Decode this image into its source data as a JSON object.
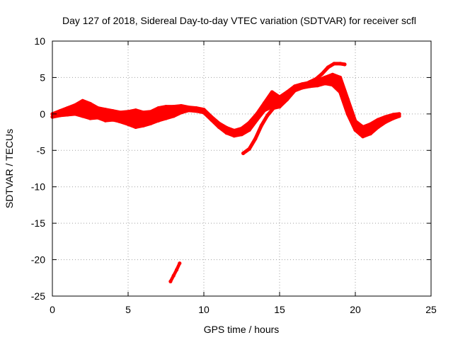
{
  "chart_data": {
    "type": "line",
    "title": "Day 127 of 2018, Sidereal Day-to-day VTEC variation (SDTVAR) for receiver scfl",
    "xlabel": "GPS time / hours",
    "ylabel": "SDTVAR / TECUs",
    "xlim": [
      0,
      25
    ],
    "ylim": [
      -25,
      10
    ],
    "xticks": [
      0,
      5,
      10,
      15,
      20,
      25
    ],
    "yticks": [
      10,
      5,
      0,
      -5,
      -10,
      -15,
      -20,
      -25
    ],
    "xtick_labels": [
      "0",
      "5",
      "10",
      "15",
      "20",
      "25"
    ],
    "ytick_labels": [
      "10",
      "5",
      "0",
      "-5",
      "-10",
      "-15",
      "-20",
      "-25"
    ],
    "grid": true,
    "color": "#ff0000",
    "series": [
      {
        "name": "band-upper",
        "x": [
          0.0,
          0.5,
          1.0,
          1.5,
          2.0,
          2.5,
          3.0,
          3.5,
          4.0,
          4.5,
          5.0,
          5.5,
          6.0,
          6.5,
          7.0,
          7.5,
          8.0,
          8.5,
          9.0,
          9.5,
          10.0,
          10.5,
          11.0,
          11.5,
          12.0,
          12.5,
          13.0,
          13.5,
          14.0,
          14.5,
          15.0,
          15.5,
          16.0,
          16.5,
          17.0,
          17.5,
          18.0,
          18.5,
          19.0,
          19.5,
          20.0,
          20.5,
          21.0,
          21.5,
          22.0,
          22.5,
          22.9
        ],
        "values": [
          0.0,
          0.4,
          0.8,
          1.2,
          1.8,
          1.4,
          0.8,
          0.6,
          0.4,
          0.2,
          0.3,
          0.5,
          0.2,
          0.3,
          0.8,
          1.0,
          1.0,
          1.1,
          0.9,
          0.8,
          0.6,
          -0.4,
          -1.3,
          -1.9,
          -2.3,
          -2.0,
          -1.2,
          0.0,
          1.5,
          3.0,
          2.3,
          3.0,
          3.8,
          4.1,
          4.3,
          4.6,
          5.0,
          5.4,
          5.0,
          2.0,
          -1.0,
          -1.8,
          -1.4,
          -0.8,
          -0.4,
          -0.1,
          0.0
        ]
      },
      {
        "name": "band-lower",
        "x": [
          0.0,
          0.5,
          1.0,
          1.5,
          2.0,
          2.5,
          3.0,
          3.5,
          4.0,
          4.5,
          5.0,
          5.5,
          6.0,
          6.5,
          7.0,
          7.5,
          8.0,
          8.5,
          9.0,
          9.5,
          10.0,
          10.5,
          11.0,
          11.5,
          12.0,
          12.5,
          13.0,
          13.5,
          14.0,
          14.5,
          15.0,
          15.5,
          16.0,
          16.5,
          17.0,
          17.5,
          18.0,
          18.5,
          19.0,
          19.5,
          20.0,
          20.5,
          21.0,
          21.5,
          22.0,
          22.5,
          22.9
        ],
        "values": [
          -0.4,
          -0.2,
          -0.1,
          0.0,
          -0.3,
          -0.6,
          -0.5,
          -0.9,
          -0.8,
          -0.7,
          -1.0,
          -1.4,
          -1.2,
          -1.0,
          -0.9,
          -0.6,
          -0.3,
          0.2,
          0.5,
          0.4,
          0.2,
          -0.8,
          -1.8,
          -2.6,
          -3.0,
          -2.8,
          -2.2,
          -0.8,
          0.5,
          1.0,
          1.0,
          2.0,
          3.2,
          3.6,
          3.8,
          3.9,
          4.2,
          4.0,
          3.0,
          0.0,
          -2.2,
          -3.1,
          -2.7,
          -1.8,
          -1.1,
          -0.6,
          -0.3
        ]
      },
      {
        "name": "offset-arc",
        "x": [
          2.0,
          2.6,
          3.2,
          3.8,
          4.4,
          5.0,
          5.5,
          6.0,
          6.5,
          7.0
        ],
        "values": [
          0.3,
          0.0,
          -0.4,
          -0.7,
          -1.0,
          -1.4,
          -1.8,
          -1.6,
          -1.3,
          -0.9
        ]
      },
      {
        "name": "steep-rise",
        "x": [
          12.6,
          13.0,
          13.4,
          13.8,
          14.2,
          14.6,
          15.0,
          15.4,
          15.8,
          16.2,
          16.6,
          17.0,
          17.4,
          17.8,
          18.2,
          18.6,
          19.0,
          19.3
        ],
        "values": [
          -5.4,
          -4.8,
          -3.4,
          -1.6,
          -0.2,
          0.8,
          1.0,
          2.0,
          3.1,
          3.6,
          4.0,
          4.4,
          4.8,
          5.5,
          6.4,
          6.9,
          6.9,
          6.8
        ]
      },
      {
        "name": "isolated-segment",
        "x": [
          7.8,
          8.0,
          8.2,
          8.4
        ],
        "values": [
          -23.0,
          -22.2,
          -21.4,
          -20.5
        ]
      }
    ]
  }
}
